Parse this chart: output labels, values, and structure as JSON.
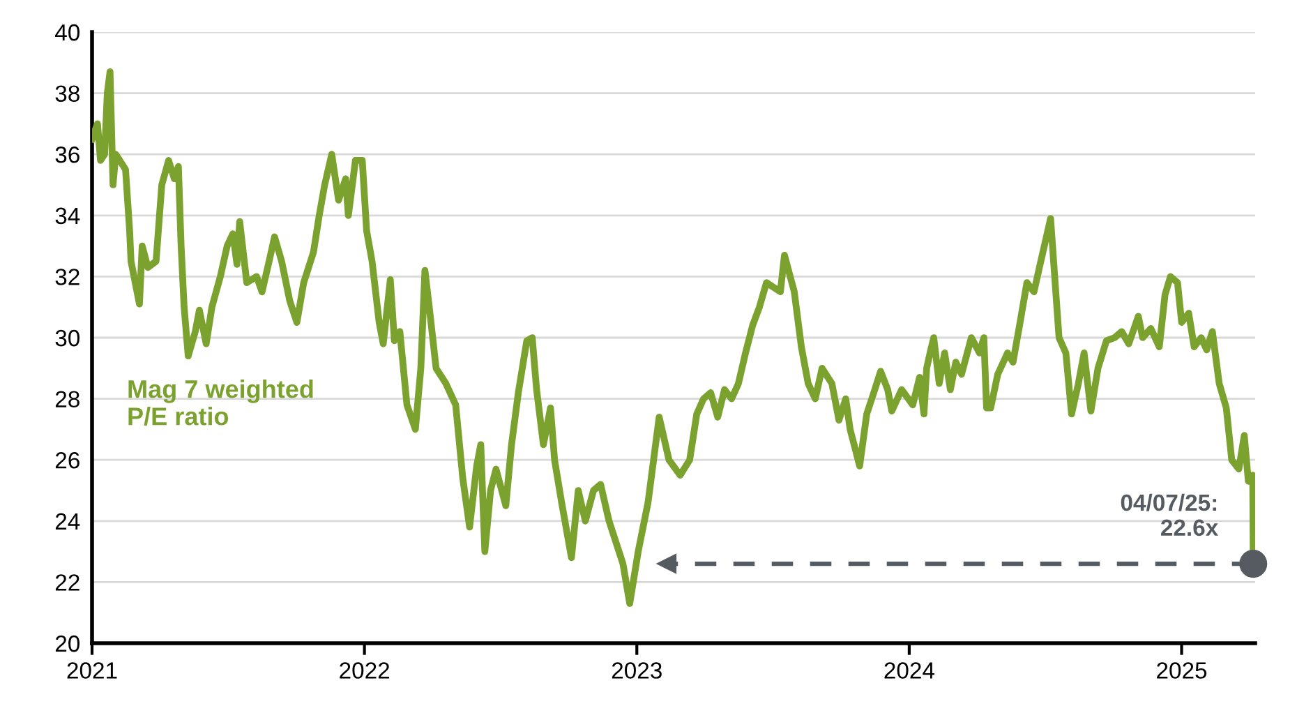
{
  "chart_data": {
    "type": "line",
    "xlim": [
      2021,
      2025.27
    ],
    "xticks": [
      2021,
      2022,
      2023,
      2024,
      2025
    ],
    "ylim": [
      20,
      40
    ],
    "yticks": [
      20,
      22,
      24,
      26,
      28,
      30,
      32,
      34,
      36,
      38,
      40
    ],
    "grid": "y",
    "legend": false,
    "line_style": "solid",
    "annotations": [
      {
        "text": "04/07/25:\n22.6x",
        "x": 2025.263,
        "y": 22.6
      }
    ],
    "series": [
      {
        "name": "Mag 7 weighted\nP/E ratio",
        "color": "#7ba22f",
        "x": [
          2021.0,
          2021.02,
          2021.031,
          2021.046,
          2021.056,
          2021.066,
          2021.077,
          2021.087,
          2021.102,
          2021.123,
          2021.138,
          2021.143,
          2021.174,
          2021.184,
          2021.205,
          2021.235,
          2021.256,
          2021.281,
          2021.302,
          2021.317,
          2021.327,
          2021.338,
          2021.353,
          2021.379,
          2021.394,
          2021.419,
          2021.44,
          2021.471,
          2021.496,
          2021.517,
          2021.532,
          2021.542,
          2021.568,
          2021.604,
          2021.624,
          2021.65,
          2021.67,
          2021.696,
          2021.726,
          2021.752,
          2021.777,
          2021.813,
          2021.834,
          2021.854,
          2021.88,
          2021.905,
          2021.931,
          2021.941,
          2021.967,
          2021.992,
          2022.008,
          2022.028,
          2022.054,
          2022.069,
          2022.095,
          2022.11,
          2022.13,
          2022.156,
          2022.187,
          2022.207,
          2022.222,
          2022.238,
          2022.263,
          2022.299,
          2022.335,
          2022.361,
          2022.386,
          2022.412,
          2022.427,
          2022.442,
          2022.463,
          2022.483,
          2022.519,
          2022.54,
          2022.565,
          2022.596,
          2022.616,
          2022.632,
          2022.657,
          2022.683,
          2022.698,
          2022.724,
          2022.76,
          2022.785,
          2022.811,
          2022.841,
          2022.867,
          2022.898,
          2022.949,
          2022.974,
          2023.005,
          2023.041,
          2023.082,
          2023.118,
          2023.159,
          2023.194,
          2023.22,
          2023.245,
          2023.271,
          2023.297,
          2023.322,
          2023.348,
          2023.373,
          2023.399,
          2023.425,
          2023.45,
          2023.476,
          2023.527,
          2023.542,
          2023.578,
          2023.604,
          2023.629,
          2023.655,
          2023.68,
          2023.716,
          2023.742,
          2023.767,
          2023.783,
          2023.818,
          2023.844,
          2023.87,
          2023.895,
          2023.921,
          2023.936,
          2023.972,
          2024.013,
          2024.038,
          2024.054,
          2024.064,
          2024.079,
          2024.09,
          2024.11,
          2024.13,
          2024.151,
          2024.171,
          2024.192,
          2024.228,
          2024.258,
          2024.274,
          2024.284,
          2024.299,
          2024.325,
          2024.361,
          2024.381,
          2024.407,
          2024.432,
          2024.458,
          2024.478,
          2024.519,
          2024.534,
          2024.55,
          2024.575,
          2024.596,
          2024.621,
          2024.642,
          2024.667,
          2024.693,
          2024.724,
          2024.754,
          2024.78,
          2024.806,
          2024.841,
          2024.857,
          2024.887,
          2024.918,
          2024.939,
          2024.959,
          2024.985,
          2025.0,
          2025.026,
          2025.046,
          2025.072,
          2025.092,
          2025.113,
          2025.138,
          2025.164,
          2025.184,
          2025.21,
          2025.23,
          2025.245,
          2025.261,
          2025.263
        ],
        "values": [
          36.5,
          37.0,
          35.8,
          36.0,
          38.0,
          38.7,
          35.0,
          36.0,
          35.8,
          35.5,
          33.5,
          32.5,
          31.1,
          33.0,
          32.3,
          32.5,
          35.0,
          35.8,
          35.2,
          35.6,
          33.0,
          31.0,
          29.4,
          30.2,
          30.9,
          29.8,
          31.0,
          32.0,
          33.0,
          33.4,
          32.4,
          33.8,
          31.8,
          32.0,
          31.5,
          32.5,
          33.3,
          32.5,
          31.2,
          30.5,
          31.8,
          32.8,
          34.0,
          35.0,
          36.0,
          34.5,
          35.2,
          34.0,
          35.8,
          35.8,
          33.5,
          32.5,
          30.5,
          29.8,
          31.9,
          29.9,
          30.2,
          27.8,
          27.0,
          29.0,
          32.2,
          31.0,
          29.0,
          28.5,
          27.8,
          25.4,
          23.8,
          25.8,
          26.5,
          23.0,
          25.0,
          25.7,
          24.5,
          26.5,
          28.2,
          29.9,
          30.0,
          28.3,
          26.5,
          27.7,
          26.0,
          24.6,
          22.8,
          25.0,
          24.0,
          25.0,
          25.2,
          24.0,
          22.6,
          21.3,
          23.0,
          24.6,
          27.4,
          26.0,
          25.5,
          26.0,
          27.5,
          28.0,
          28.2,
          27.4,
          28.3,
          28.0,
          28.5,
          29.5,
          30.4,
          31.0,
          31.8,
          31.5,
          32.7,
          31.5,
          29.7,
          28.5,
          28.0,
          29.0,
          28.5,
          27.3,
          28.0,
          27.0,
          25.8,
          27.5,
          28.2,
          28.9,
          28.3,
          27.6,
          28.3,
          27.8,
          28.7,
          27.5,
          29.0,
          29.6,
          30.0,
          28.5,
          29.5,
          28.3,
          29.2,
          28.8,
          30.0,
          29.5,
          30.0,
          27.7,
          27.7,
          28.8,
          29.5,
          29.2,
          30.5,
          31.8,
          31.5,
          32.3,
          33.9,
          32.0,
          30.0,
          29.5,
          27.5,
          28.5,
          29.5,
          27.6,
          29.0,
          29.9,
          30.0,
          30.2,
          29.8,
          30.7,
          30.0,
          30.3,
          29.7,
          31.4,
          32.0,
          31.8,
          30.5,
          30.8,
          29.7,
          30.0,
          29.6,
          30.2,
          28.5,
          27.7,
          26.0,
          25.7,
          26.8,
          25.3,
          25.5,
          22.6
        ]
      },
      {
        "color": "#555b61",
        "type": "line",
        "line_style": "dashed",
        "marker": "triangle",
        "x": [
          2025.263,
          2023.11
        ],
        "values": [
          22.6,
          22.6
        ]
      },
      {
        "color": "#555b61",
        "type": "scatter",
        "marker": "circle",
        "x": [
          2025.263
        ],
        "values": [
          22.6
        ]
      }
    ]
  }
}
